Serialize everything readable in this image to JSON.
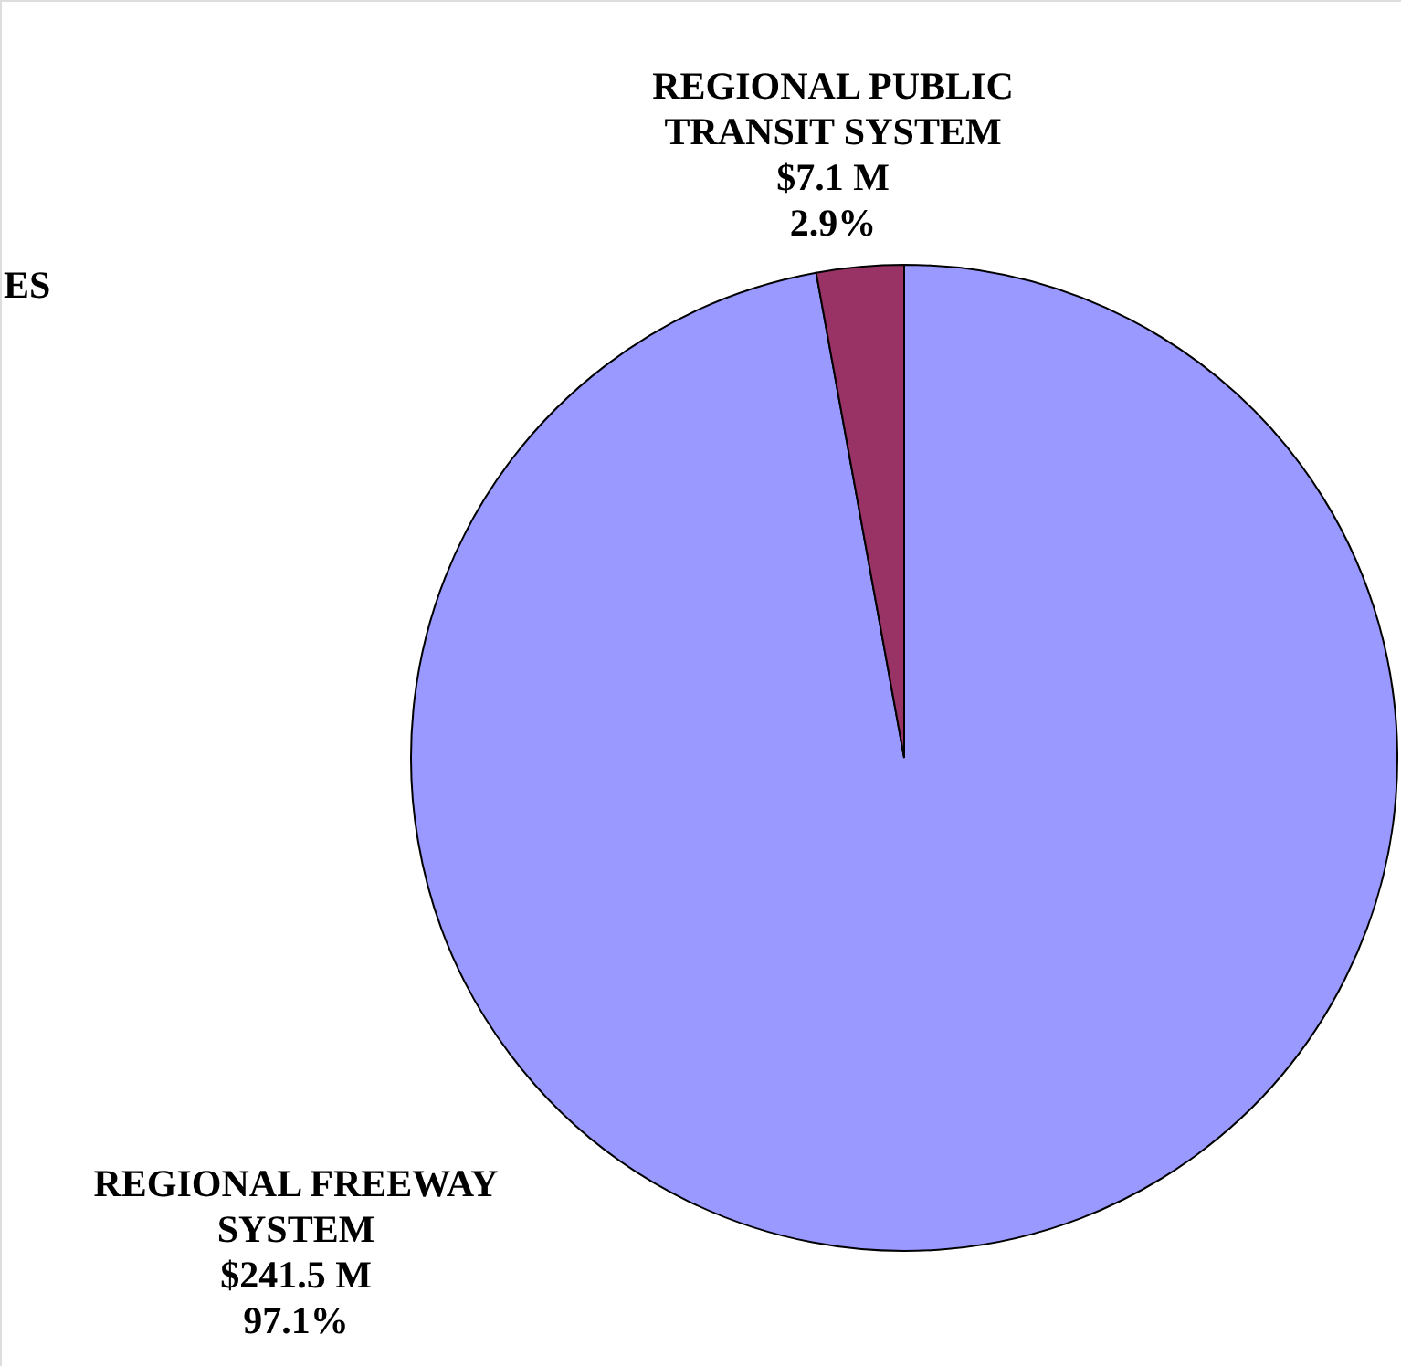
{
  "chart_data": {
    "type": "pie",
    "categories": [
      "REGIONAL FREEWAY SYSTEM",
      "REGIONAL PUBLIC TRANSIT SYSTEM"
    ],
    "values": [
      241.5,
      7.1
    ],
    "colors": [
      "#9999ff",
      "#993366"
    ],
    "value_labels": [
      "$241.5 M\n97.1%",
      "$7.1 M\n2.9%"
    ],
    "annotations": [
      "ES"
    ]
  }
}
